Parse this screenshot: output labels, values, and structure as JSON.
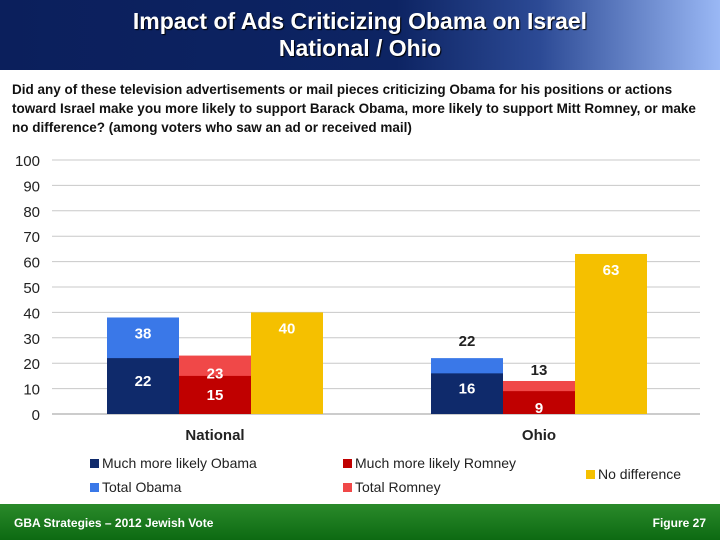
{
  "header": {
    "title_line1": "Impact of Ads Criticizing Obama on Israel",
    "title_line2": "National / Ohio"
  },
  "question": "Did any of these television advertisements or mail pieces criticizing Obama for his positions or actions toward Israel make you more likely to support Barack Obama, more likely to support Mitt Romney, or make no difference? (among voters who saw an ad or received mail)",
  "footer": {
    "left": "GBA Strategies – 2012 Jewish Vote",
    "right": "Figure 27"
  },
  "chart_data": {
    "type": "bar",
    "categories": [
      "National",
      "Ohio"
    ],
    "ylim": [
      0,
      100
    ],
    "yticks": [
      0,
      10,
      20,
      30,
      40,
      50,
      60,
      70,
      80,
      90,
      100
    ],
    "grid": true,
    "legend_placement": "bottom",
    "series": [
      {
        "name": "Much more likely Obama",
        "values": [
          22,
          16
        ],
        "color": "#0f2a6b"
      },
      {
        "name": "Total Obama",
        "values": [
          38,
          22
        ],
        "color": "#3a78e8"
      },
      {
        "name": "Much more likely Romney",
        "values": [
          15,
          9
        ],
        "color": "#c00000"
      },
      {
        "name": "Total Romney",
        "values": [
          23,
          13
        ],
        "color": "#f04848"
      },
      {
        "name": "No difference",
        "values": [
          40,
          63
        ],
        "color": "#f5c000"
      }
    ]
  }
}
